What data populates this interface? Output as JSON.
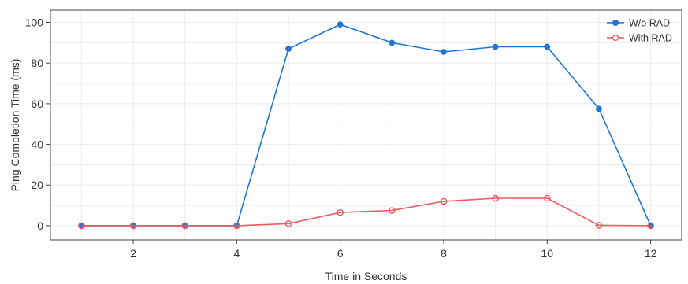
{
  "chart_data": {
    "type": "line",
    "title": "",
    "xlabel": "Time in Seconds",
    "ylabel": "Ping Completion Time (ms)",
    "xlim": [
      0.4,
      12.6
    ],
    "ylim": [
      -7,
      106
    ],
    "xticks": [
      2,
      4,
      6,
      8,
      10,
      12
    ],
    "yticks": [
      0,
      20,
      40,
      60,
      80,
      100
    ],
    "grid": true,
    "legend_position": "top-right",
    "x": [
      1,
      2,
      3,
      4,
      5,
      6,
      7,
      8,
      9,
      10,
      11,
      12
    ],
    "series": [
      {
        "name": "W/o RAD",
        "color": "#1f77d4",
        "marker": "filled-circle",
        "values": [
          0,
          0,
          0,
          0,
          87,
          99,
          90,
          85.5,
          88,
          88,
          57.5,
          0
        ]
      },
      {
        "name": "With RAD",
        "color": "#f0595e",
        "marker": "hollow-circle",
        "values": [
          0,
          0,
          0,
          0,
          1,
          6.5,
          7.5,
          12,
          13.5,
          13.5,
          0.2,
          0
        ]
      }
    ]
  }
}
